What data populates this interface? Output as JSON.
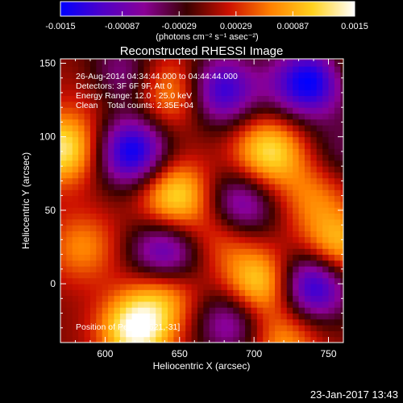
{
  "colorbar": {
    "tick_labels": [
      "-0.0015",
      "-0.00087",
      "-0.00029",
      "0.00029",
      "0.00087",
      "0.0015"
    ],
    "range": [
      -0.0015,
      0.0015
    ],
    "unit_label": "(photons cm⁻² s⁻¹ asec⁻²)",
    "colormap": [
      "#0000ff",
      "#5000c8",
      "#8a0096",
      "#3a0000",
      "#cc1000",
      "#ff8000",
      "#ffd21e",
      "#ffffff"
    ]
  },
  "chart_data": {
    "type": "heatmap",
    "title": "Reconstructed RHESSI Image",
    "xlabel": "Heliocentric X (arcsec)",
    "ylabel": "Heliocentric Y (arcsec)",
    "xlim": [
      570,
      760
    ],
    "ylim": [
      -40,
      153
    ],
    "x_ticks": [
      600,
      650,
      700,
      750
    ],
    "y_ticks": [
      0,
      50,
      100,
      150
    ],
    "annotations": [
      "26-Aug-2014 04:34:44.000 to 04:44:44.000",
      "Detectors: 3F 6F 9F, Att 0",
      "Energy Range: 12.0 - 25.0 keV",
      "Clean    Total counts: 2.35E+04"
    ],
    "position_label": "Position of Peak = [621,-31]",
    "peak": [
      621,
      -31
    ],
    "sources": [
      {
        "x": 621,
        "y": -31,
        "v": 1.0
      },
      {
        "x": 572,
        "y": 92,
        "v": 0.85
      },
      {
        "x": 647,
        "y": 60,
        "v": 0.8
      },
      {
        "x": 703,
        "y": 0,
        "v": 0.8
      },
      {
        "x": 710,
        "y": 90,
        "v": 0.8
      },
      {
        "x": 755,
        "y": 25,
        "v": 0.7
      },
      {
        "x": 645,
        "y": 130,
        "v": 0.55
      },
      {
        "x": 585,
        "y": 25,
        "v": 0.45
      },
      {
        "x": 770,
        "y": 150,
        "v": 0.35
      },
      {
        "x": 600,
        "y": 135,
        "v": 0.5
      },
      {
        "x": 640,
        "y": -5,
        "v": 0.55
      },
      {
        "x": 720,
        "y": -40,
        "v": 0.5
      },
      {
        "x": 680,
        "y": 35,
        "v": 0.45
      },
      {
        "x": 740,
        "y": 60,
        "v": 0.4
      }
    ],
    "holes": [
      {
        "x": 618,
        "y": 90,
        "v": -1.0
      },
      {
        "x": 607,
        "y": 140,
        "v": -0.8
      },
      {
        "x": 678,
        "y": 132,
        "v": -0.85
      },
      {
        "x": 690,
        "y": 52,
        "v": -0.75
      },
      {
        "x": 640,
        "y": 20,
        "v": -0.8
      },
      {
        "x": 730,
        "y": 135,
        "v": -0.6
      },
      {
        "x": 745,
        "y": 140,
        "v": -0.55
      },
      {
        "x": 740,
        "y": 0,
        "v": -1.0
      },
      {
        "x": 685,
        "y": -25,
        "v": -0.6
      },
      {
        "x": 760,
        "y": 90,
        "v": -0.3
      }
    ]
  },
  "footer": {
    "timestamp": "23-Jan-2017 13:43"
  }
}
